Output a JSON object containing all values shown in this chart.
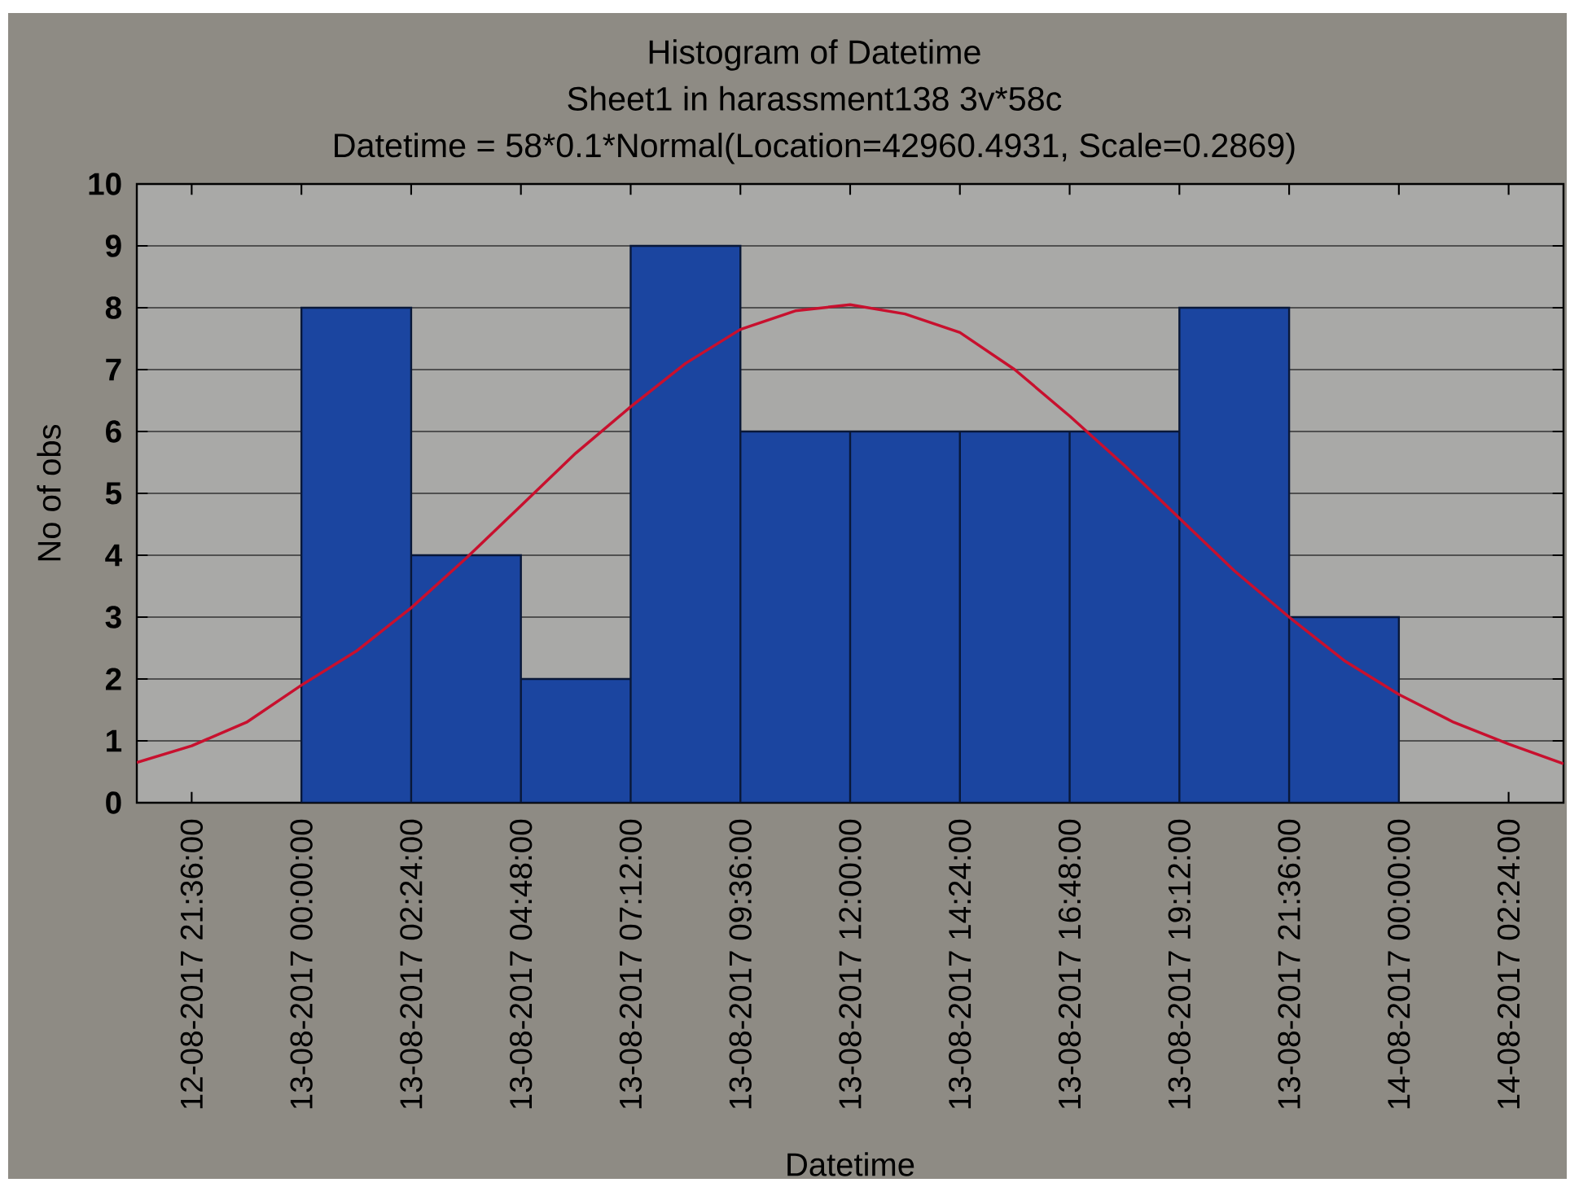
{
  "chart_data": {
    "type": "histogram",
    "title": "Histogram of Datetime",
    "subtitle": "Sheet1 in harassment138 3v*58c",
    "annotations": [
      "Datetime = 58*0.1*Normal(Location=42960.4931, Scale=0.2869)"
    ],
    "xlabel": "Datetime",
    "ylabel": "No of obs",
    "bins": [
      "2017-08-13T00:00",
      "2017-08-13T02:24",
      "2017-08-13T04:48",
      "2017-08-13T07:12",
      "2017-08-13T09:36",
      "2017-08-13T12:00",
      "2017-08-13T14:24",
      "2017-08-13T16:48",
      "2017-08-13T19:12",
      "2017-08-13T21:36",
      "2017-08-14T00:00"
    ],
    "series": [
      {
        "color": "#1b45a0",
        "values": [
          8,
          4,
          2,
          9,
          6,
          6,
          6,
          6,
          8,
          3
        ]
      },
      {
        "type": "line",
        "color": "#c8102e",
        "x": [
          "2017-08-12T20:24",
          "2017-08-12T21:36",
          "2017-08-12T22:48",
          "2017-08-13T00:00",
          "2017-08-13T01:12",
          "2017-08-13T02:24",
          "2017-08-13T03:36",
          "2017-08-13T04:48",
          "2017-08-13T06:00",
          "2017-08-13T07:12",
          "2017-08-13T08:24",
          "2017-08-13T09:36",
          "2017-08-13T10:48",
          "2017-08-13T12:00",
          "2017-08-13T13:12",
          "2017-08-13T14:24",
          "2017-08-13T15:36",
          "2017-08-13T16:48",
          "2017-08-13T18:00",
          "2017-08-13T19:12",
          "2017-08-13T20:24",
          "2017-08-13T21:36",
          "2017-08-13T22:48",
          "2017-08-14T00:00",
          "2017-08-14T01:12",
          "2017-08-14T02:24",
          "2017-08-14T03:36"
        ],
        "values": [
          0.65,
          0.92,
          1.3,
          1.9,
          2.45,
          3.15,
          3.95,
          4.8,
          5.65,
          6.4,
          7.1,
          7.65,
          7.95,
          8.05,
          7.9,
          7.6,
          7.0,
          6.25,
          5.45,
          4.6,
          3.75,
          3.0,
          2.3,
          1.75,
          1.3,
          0.95,
          0.63
        ]
      }
    ],
    "xlim": [
      "2017-08-12T20:24",
      "2017-08-14T03:36"
    ],
    "xticks": [
      {
        "value": "2017-08-12T21:36",
        "label": "12-08-2017 21:36:00"
      },
      {
        "value": "2017-08-13T00:00",
        "label": "13-08-2017 00:00:00"
      },
      {
        "value": "2017-08-13T02:24",
        "label": "13-08-2017 02:24:00"
      },
      {
        "value": "2017-08-13T04:48",
        "label": "13-08-2017 04:48:00"
      },
      {
        "value": "2017-08-13T07:12",
        "label": "13-08-2017 07:12:00"
      },
      {
        "value": "2017-08-13T09:36",
        "label": "13-08-2017 09:36:00"
      },
      {
        "value": "2017-08-13T12:00",
        "label": "13-08-2017 12:00:00"
      },
      {
        "value": "2017-08-13T14:24",
        "label": "13-08-2017 14:24:00"
      },
      {
        "value": "2017-08-13T16:48",
        "label": "13-08-2017 16:48:00"
      },
      {
        "value": "2017-08-13T19:12",
        "label": "13-08-2017 19:12:00"
      },
      {
        "value": "2017-08-13T21:36",
        "label": "13-08-2017 21:36:00"
      },
      {
        "value": "2017-08-14T00:00",
        "label": "14-08-2017 00:00:00"
      },
      {
        "value": "2017-08-14T02:24",
        "label": "14-08-2017 02:24:00"
      }
    ],
    "ylim": [
      0,
      10
    ],
    "yticks": [
      0,
      1,
      2,
      3,
      4,
      5,
      6,
      7,
      8,
      9,
      10
    ],
    "grid": "y"
  }
}
